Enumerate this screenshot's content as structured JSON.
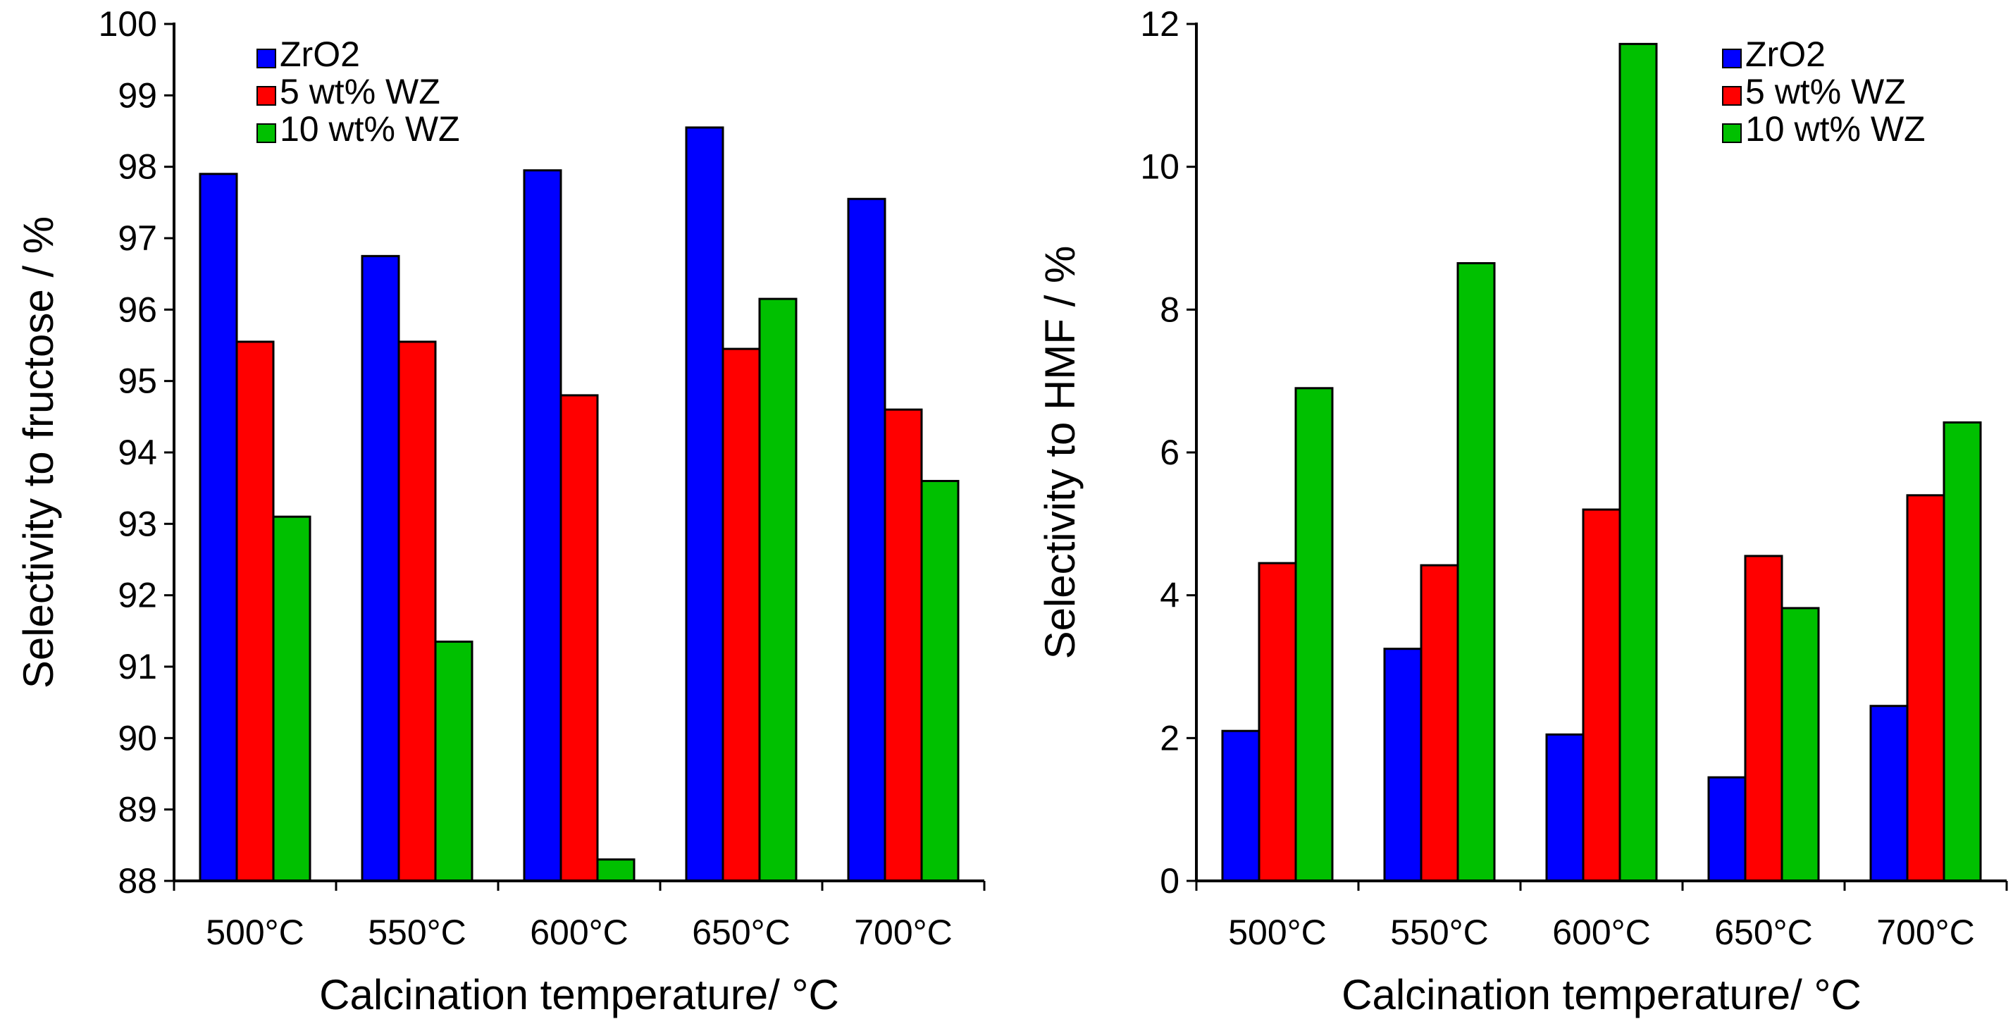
{
  "chart_data": [
    {
      "type": "bar",
      "title": "",
      "xlabel": "Calcination temperature/ °C",
      "ylabel": "Selectivity to fructose / %",
      "categories": [
        "500°C",
        "550°C",
        "600°C",
        "650°C",
        "700°C"
      ],
      "ylim": [
        88,
        100
      ],
      "yticks": [
        88,
        89,
        90,
        91,
        92,
        93,
        94,
        95,
        96,
        97,
        98,
        99,
        100
      ],
      "grid": false,
      "legend_position": "top-left",
      "series": [
        {
          "name": "ZrO2",
          "color": "#0000ff",
          "values": [
            97.9,
            96.75,
            97.95,
            98.55,
            97.55
          ]
        },
        {
          "name": "5 wt% WZ",
          "color": "#ff0000",
          "values": [
            95.55,
            95.55,
            94.8,
            95.45,
            94.6
          ]
        },
        {
          "name": "10 wt% WZ",
          "color": "#00c000",
          "values": [
            93.1,
            91.35,
            88.3,
            96.15,
            93.6
          ]
        }
      ]
    },
    {
      "type": "bar",
      "title": "",
      "xlabel": "Calcination temperature/ °C",
      "ylabel": "Selectivity to HMF / %",
      "categories": [
        "500°C",
        "550°C",
        "600°C",
        "650°C",
        "700°C"
      ],
      "ylim": [
        0,
        12
      ],
      "yticks": [
        0,
        2,
        4,
        6,
        8,
        10,
        12
      ],
      "grid": false,
      "legend_position": "top-right",
      "series": [
        {
          "name": "ZrO2",
          "color": "#0000ff",
          "values": [
            2.1,
            3.25,
            2.05,
            1.45,
            2.45
          ]
        },
        {
          "name": "5 wt% WZ",
          "color": "#ff0000",
          "values": [
            4.45,
            4.42,
            5.2,
            4.55,
            5.4
          ]
        },
        {
          "name": "10 wt% WZ",
          "color": "#00c000",
          "values": [
            6.9,
            8.65,
            11.72,
            3.82,
            6.42
          ]
        }
      ]
    }
  ]
}
